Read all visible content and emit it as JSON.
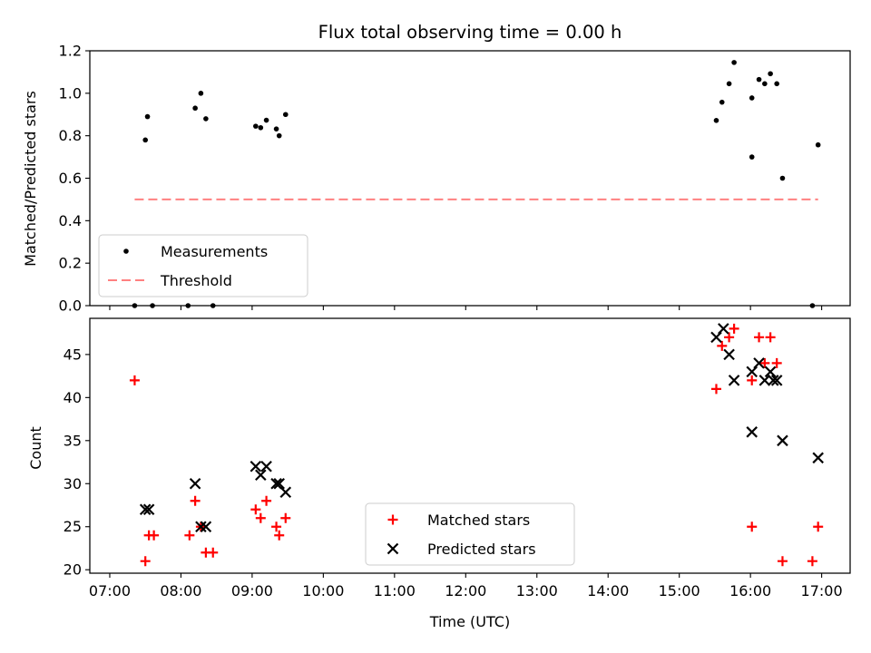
{
  "chart_data": {
    "type": "scatter",
    "title": "Flux total observing time = 0.00 h",
    "xlabel": "Time (UTC)",
    "x_ticks": [
      "07:00",
      "08:00",
      "09:00",
      "10:00",
      "11:00",
      "12:00",
      "13:00",
      "14:00",
      "15:00",
      "16:00",
      "17:00"
    ],
    "xlim_hours": [
      6.72,
      17.4
    ],
    "panels": [
      {
        "name": "ratio",
        "ylabel": "Matched/Predicted stars",
        "ylim": [
          0.0,
          1.2
        ],
        "y_ticks": [
          "0.0",
          "0.2",
          "0.4",
          "0.6",
          "0.8",
          "1.0",
          "1.2"
        ],
        "legend": {
          "position": "lower-left",
          "entries": [
            "Measurements",
            "Threshold"
          ]
        },
        "series": [
          {
            "name": "Measurements",
            "marker": "dot",
            "color": "#000000",
            "points": [
              [
                7.35,
                0.0
              ],
              [
                7.5,
                0.78
              ],
              [
                7.53,
                0.89
              ],
              [
                7.6,
                0.0
              ],
              [
                8.1,
                0.0
              ],
              [
                8.2,
                0.93
              ],
              [
                8.28,
                1.0
              ],
              [
                8.35,
                0.88
              ],
              [
                8.45,
                0.0
              ],
              [
                9.05,
                0.845
              ],
              [
                9.12,
                0.838
              ],
              [
                9.2,
                0.873
              ],
              [
                9.34,
                0.832
              ],
              [
                9.38,
                0.8
              ],
              [
                9.47,
                0.9
              ],
              [
                15.52,
                0.872
              ],
              [
                15.6,
                0.958
              ],
              [
                15.7,
                1.045
              ],
              [
                15.77,
                1.145
              ],
              [
                16.02,
                0.7
              ],
              [
                16.02,
                0.978
              ],
              [
                16.12,
                1.065
              ],
              [
                16.2,
                1.045
              ],
              [
                16.28,
                1.092
              ],
              [
                16.37,
                1.045
              ],
              [
                16.45,
                0.6
              ],
              [
                16.87,
                0.0
              ],
              [
                16.95,
                0.757
              ]
            ]
          },
          {
            "name": "Threshold",
            "marker": "dashed-line",
            "color": "#ff8080",
            "value": 0.5,
            "x_range": [
              7.35,
              16.95
            ]
          }
        ]
      },
      {
        "name": "counts",
        "ylabel": "Count",
        "ylim": [
          19.6,
          49.2
        ],
        "y_ticks": [
          "20",
          "25",
          "30",
          "35",
          "40",
          "45"
        ],
        "y_tick_values": [
          20,
          25,
          30,
          35,
          40,
          45
        ],
        "legend": {
          "position": "lower-center",
          "entries": [
            "Matched stars",
            "Predicted stars"
          ]
        },
        "series": [
          {
            "name": "Matched stars",
            "marker": "plus",
            "color": "#ff0000",
            "points": [
              [
                7.35,
                42
              ],
              [
                7.5,
                21
              ],
              [
                7.55,
                24
              ],
              [
                7.62,
                24
              ],
              [
                8.12,
                24
              ],
              [
                8.2,
                28
              ],
              [
                8.28,
                25
              ],
              [
                8.35,
                22
              ],
              [
                8.45,
                22
              ],
              [
                9.05,
                27
              ],
              [
                9.12,
                26
              ],
              [
                9.2,
                28
              ],
              [
                9.34,
                25
              ],
              [
                9.38,
                24
              ],
              [
                9.47,
                26
              ],
              [
                15.52,
                41
              ],
              [
                15.6,
                46
              ],
              [
                15.7,
                47
              ],
              [
                15.77,
                48
              ],
              [
                16.02,
                25
              ],
              [
                16.02,
                42
              ],
              [
                16.12,
                47
              ],
              [
                16.2,
                44
              ],
              [
                16.28,
                47
              ],
              [
                16.37,
                44
              ],
              [
                16.45,
                21
              ],
              [
                16.87,
                21
              ],
              [
                16.95,
                25
              ]
            ]
          },
          {
            "name": "Predicted stars",
            "marker": "x",
            "color": "#000000",
            "points": [
              [
                7.5,
                27
              ],
              [
                7.55,
                27
              ],
              [
                8.2,
                30
              ],
              [
                8.28,
                25
              ],
              [
                8.35,
                25
              ],
              [
                9.05,
                32
              ],
              [
                9.12,
                31
              ],
              [
                9.2,
                32
              ],
              [
                9.34,
                30
              ],
              [
                9.38,
                30
              ],
              [
                9.47,
                29
              ],
              [
                15.52,
                47
              ],
              [
                15.62,
                48
              ],
              [
                15.7,
                45
              ],
              [
                15.77,
                42
              ],
              [
                16.02,
                36
              ],
              [
                16.02,
                43
              ],
              [
                16.12,
                44
              ],
              [
                16.2,
                42
              ],
              [
                16.28,
                43
              ],
              [
                16.32,
                42
              ],
              [
                16.37,
                42
              ],
              [
                16.45,
                35
              ],
              [
                16.95,
                33
              ]
            ]
          }
        ]
      }
    ]
  }
}
